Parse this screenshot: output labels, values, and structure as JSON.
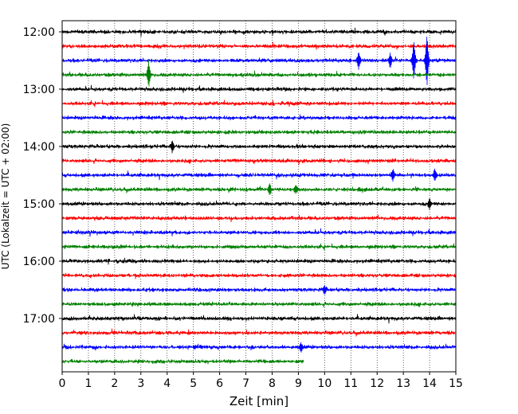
{
  "chart_data": {
    "type": "line",
    "title": "",
    "xlabel": "Zeit  [min]",
    "ylabel": "UTC (Lokalzeit = UTC + 02:00)",
    "xlim": [
      0,
      15
    ],
    "x_ticks": [
      "0",
      "1",
      "2",
      "3",
      "4",
      "5",
      "6",
      "7",
      "8",
      "9",
      "10",
      "11",
      "12",
      "13",
      "14",
      "15"
    ],
    "y_tick_labels": [
      "12:00",
      "13:00",
      "14:00",
      "15:00",
      "16:00",
      "17:00"
    ],
    "grid": "vertical dotted",
    "colors": [
      "#000000",
      "#ff0000",
      "#0000ff",
      "#008000"
    ],
    "traces": [
      {
        "start": "12:00",
        "color": "#000000",
        "end_min": 15
      },
      {
        "start": "12:15",
        "color": "#ff0000",
        "end_min": 15
      },
      {
        "start": "12:30",
        "color": "#0000ff",
        "end_min": 15,
        "events": [
          {
            "t": 11.3,
            "amp": 0.6
          },
          {
            "t": 12.5,
            "amp": 0.5
          },
          {
            "t": 13.4,
            "amp": 1.4
          },
          {
            "t": 13.9,
            "amp": 1.9
          }
        ]
      },
      {
        "start": "12:45",
        "color": "#008000",
        "end_min": 15,
        "events": [
          {
            "t": 3.3,
            "amp": 0.9
          }
        ]
      },
      {
        "start": "13:00",
        "color": "#000000",
        "end_min": 15
      },
      {
        "start": "13:15",
        "color": "#ff0000",
        "end_min": 15
      },
      {
        "start": "13:30",
        "color": "#0000ff",
        "end_min": 15
      },
      {
        "start": "13:45",
        "color": "#008000",
        "end_min": 15
      },
      {
        "start": "14:00",
        "color": "#000000",
        "end_min": 15,
        "events": [
          {
            "t": 4.2,
            "amp": 0.4
          }
        ]
      },
      {
        "start": "14:15",
        "color": "#ff0000",
        "end_min": 15
      },
      {
        "start": "14:30",
        "color": "#0000ff",
        "end_min": 15,
        "events": [
          {
            "t": 12.6,
            "amp": 0.4
          },
          {
            "t": 14.2,
            "amp": 0.4
          }
        ]
      },
      {
        "start": "14:45",
        "color": "#008000",
        "end_min": 15,
        "events": [
          {
            "t": 7.9,
            "amp": 0.4
          },
          {
            "t": 8.9,
            "amp": 0.3
          }
        ]
      },
      {
        "start": "15:00",
        "color": "#000000",
        "end_min": 15,
        "events": [
          {
            "t": 14.0,
            "amp": 0.3
          }
        ]
      },
      {
        "start": "15:15",
        "color": "#ff0000",
        "end_min": 15
      },
      {
        "start": "15:30",
        "color": "#0000ff",
        "end_min": 15
      },
      {
        "start": "15:45",
        "color": "#008000",
        "end_min": 15
      },
      {
        "start": "16:00",
        "color": "#000000",
        "end_min": 15
      },
      {
        "start": "16:15",
        "color": "#ff0000",
        "end_min": 15
      },
      {
        "start": "16:30",
        "color": "#0000ff",
        "end_min": 15,
        "events": [
          {
            "t": 10.0,
            "amp": 0.3
          }
        ]
      },
      {
        "start": "16:45",
        "color": "#008000",
        "end_min": 15
      },
      {
        "start": "17:00",
        "color": "#000000",
        "end_min": 15
      },
      {
        "start": "17:15",
        "color": "#ff0000",
        "end_min": 15
      },
      {
        "start": "17:30",
        "color": "#0000ff",
        "end_min": 15,
        "events": [
          {
            "t": 9.1,
            "amp": 0.3
          }
        ]
      },
      {
        "start": "17:45",
        "color": "#008000",
        "end_min": 9.2
      }
    ]
  }
}
